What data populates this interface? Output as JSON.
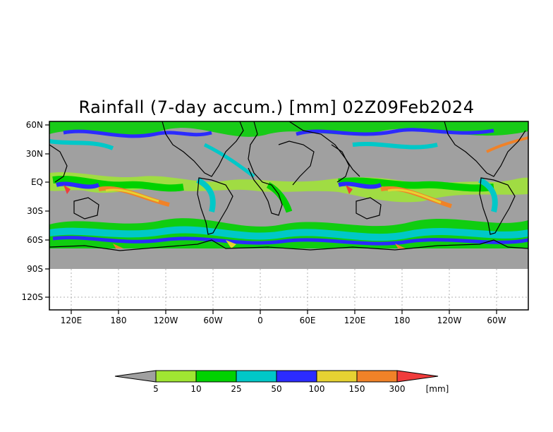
{
  "title": "Rainfall (7-day accum.) [mm] 02Z09Feb2024",
  "y_axis": {
    "labels": [
      "60N",
      "30N",
      "EQ",
      "30S",
      "60S",
      "90S",
      "120S"
    ]
  },
  "x_axis": {
    "labels": [
      "120E",
      "180",
      "120W",
      "60W",
      "0",
      "60E",
      "120E",
      "180",
      "120W",
      "60W"
    ]
  },
  "colorbar": {
    "unit": "[mm]",
    "labels": [
      "5",
      "10",
      "25",
      "50",
      "100",
      "150",
      "300"
    ],
    "colors": [
      "#a0a0a0",
      "#a0e632",
      "#00d200",
      "#00c8c8",
      "#2b2bff",
      "#e6d232",
      "#f08228",
      "#f03c3c"
    ]
  },
  "map": {
    "ocean_color": "#a0a0a0",
    "land_outline": "#000000",
    "no_data_color": "#ffffff"
  }
}
